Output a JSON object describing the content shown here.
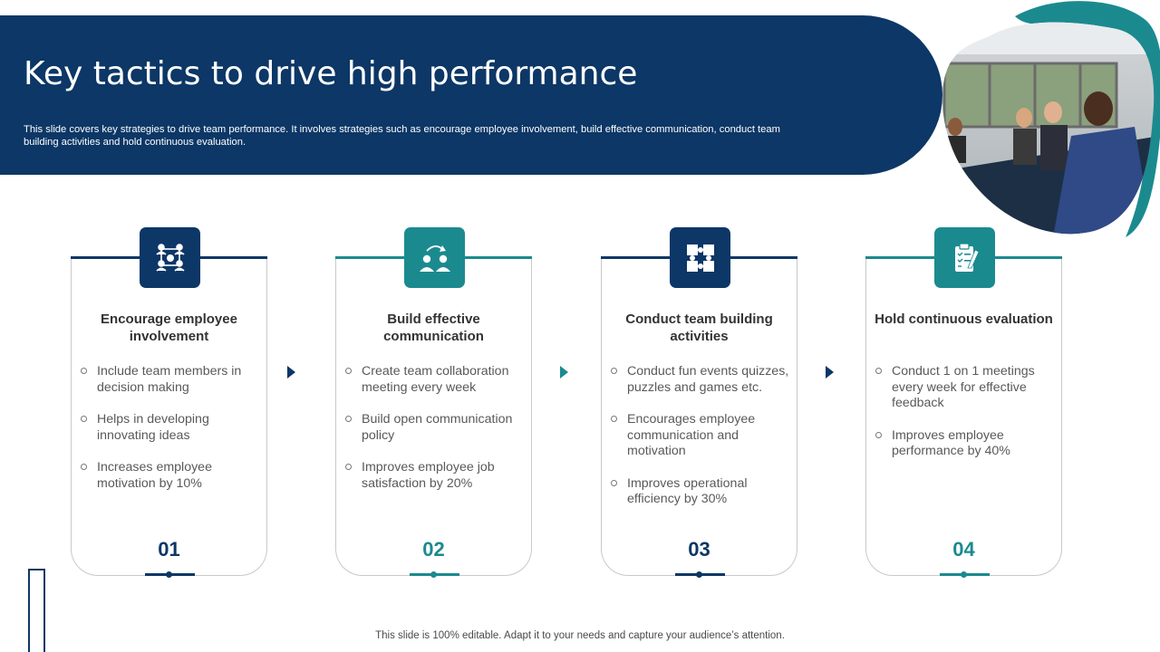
{
  "header": {
    "title": "Key tactics to drive high performance",
    "description": "This slide covers key strategies to drive team performance. It involves strategies such as encourage employee involvement, build effective communication, conduct team building activities and hold continuous evaluation."
  },
  "cards": [
    {
      "title": "Encourage employee involvement",
      "number": "01",
      "icon": "team-gear-icon",
      "accent": "#0c3766",
      "bullets": [
        "Include team members in decision making",
        "Helps in developing innovating ideas",
        "Increases employee motivation by 10%"
      ]
    },
    {
      "title": "Build effective communication",
      "number": "02",
      "icon": "people-exchange-icon",
      "accent": "#1b8a8f",
      "bullets": [
        "Create team collaboration meeting every week",
        "Build open communication policy",
        "Improves employee job satisfaction by 20%"
      ]
    },
    {
      "title": "Conduct team building activities",
      "number": "03",
      "icon": "puzzle-icon",
      "accent": "#0c3766",
      "bullets": [
        "Conduct fun events quizzes, puzzles and games etc.",
        "Encourages employee communication and motivation",
        "Improves operational efficiency by 30%"
      ]
    },
    {
      "title": "Hold continuous evaluation",
      "number": "04",
      "icon": "clipboard-checklist-icon",
      "accent": "#1b8a8f",
      "bullets": [
        "Conduct 1 on 1 meetings every week for effective feedback",
        "Improves employee performance by 40%"
      ]
    }
  ],
  "footer": {
    "note": "This slide is 100% editable. Adapt it to your needs and capture your audience’s attention."
  },
  "colors": {
    "navy": "#0c3766",
    "teal": "#1b8a8f"
  }
}
